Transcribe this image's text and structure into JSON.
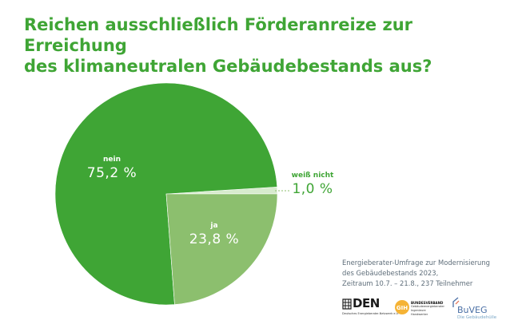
{
  "title_line1": "Reichen ausschließlich Förderanreize zur Erreichung",
  "title_line2": "des klimaneutralen Gebäudebestands aus?",
  "colors": {
    "title": "#3fa535",
    "nein": "#3fa535",
    "ja": "#8cbf6e",
    "weiss_nicht": "#d7ebcd",
    "source_text": "#5f6e7a"
  },
  "chart_data": {
    "type": "pie",
    "slices": [
      {
        "name": "nein",
        "value": 75.2,
        "label": "75,2 %",
        "color": "#3fa535"
      },
      {
        "name": "ja",
        "value": 23.8,
        "label": "23,8 %",
        "color": "#8cbf6e"
      },
      {
        "name": "weiß nicht",
        "value": 1.0,
        "label": "1,0 %",
        "color": "#d7ebcd"
      }
    ],
    "title": "Reichen ausschließlich Förderanreize zur Erreichung des klimaneutralen Gebäudebestands aus?"
  },
  "source": {
    "line1": "Energieberater-Umfrage zur Modernisierung",
    "line2": "des Gebäudebestands 2023,",
    "line3": "Zeitraum 10.7. – 21.8., 237 Teilnehmer"
  },
  "logos": {
    "den_mark": "DEN",
    "den_sub": "Deutsches Energieberater-Netzwerk e.V.",
    "gih_mark": "GIH",
    "gih_name": "BUNDESVERBAND",
    "gih_sub": "Gebäudeenergieberater Ingenieure Handwerker",
    "buveg_name": "BuVEG",
    "buveg_sub": "Die Gebäudehülle"
  }
}
